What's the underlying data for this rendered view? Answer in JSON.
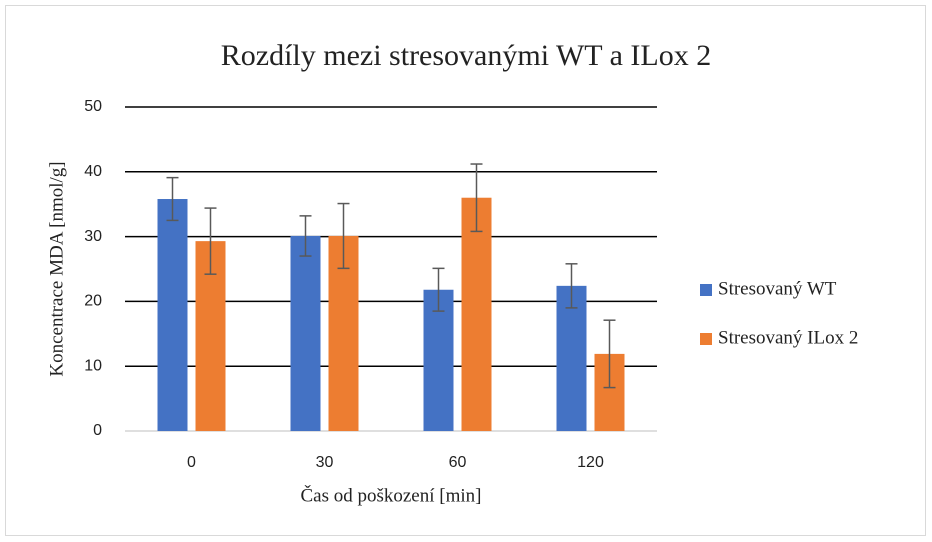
{
  "chart_data": {
    "type": "bar",
    "title": "Rozdíly mezi stresovanými WT a ILox 2",
    "x_label": "Čas od poškození [min]",
    "y_label": "Koncentrace MDA  [nmol/g]",
    "categories": [
      "0",
      "30",
      "60",
      "120"
    ],
    "series": [
      {
        "name": "Stresovaný WT",
        "color": "#4472c4",
        "values": [
          35.8,
          30.1,
          21.8,
          22.4
        ],
        "errors": [
          3.3,
          3.1,
          3.3,
          3.4
        ]
      },
      {
        "name": "Stresovaný ILox 2",
        "color": "#ed7d31",
        "values": [
          29.3,
          30.1,
          36.0,
          11.9
        ],
        "errors": [
          5.1,
          5.0,
          5.2,
          5.2
        ]
      }
    ],
    "ylim": [
      0,
      50
    ],
    "yticks": [
      0,
      10,
      20,
      30,
      40,
      50
    ],
    "grid": true,
    "legend": "right"
  }
}
